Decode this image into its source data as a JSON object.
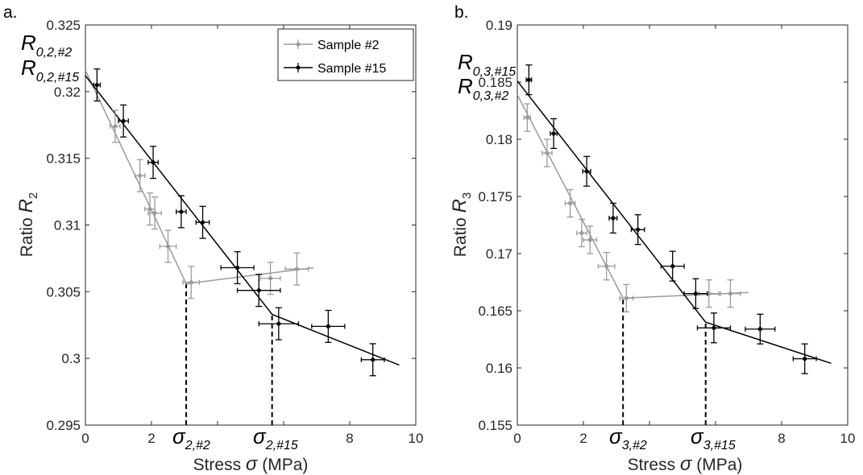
{
  "chart_data": [
    {
      "panel_label": "a.",
      "type": "scatter",
      "xlabel_prefix": "Stress",
      "xlabel_symbol": "σ",
      "xlabel_unit": "(MPa)",
      "ylabel_prefix": "Ratio",
      "ylabel_symbol": "R",
      "ylabel_sub": "2",
      "xlim": [
        0,
        10
      ],
      "ylim": [
        0.295,
        0.325
      ],
      "xticks": [
        0,
        2,
        4,
        6,
        8,
        10
      ],
      "xtick_labels": [
        "0",
        "2",
        "",
        "",
        "8",
        "10"
      ],
      "yticks": [
        0.295,
        0.3,
        0.305,
        0.31,
        0.315,
        0.32,
        0.325
      ],
      "ytick_labels": [
        "0.295",
        "0.3",
        "0.305",
        "0.31",
        "0.315",
        "0.32",
        "0.325"
      ],
      "legend": {
        "position": "top-right",
        "entries": [
          {
            "name": "Sample #2",
            "color": "#9a9a9a"
          },
          {
            "name": "Sample #15",
            "color": "#000000"
          }
        ]
      },
      "series": [
        {
          "name": "Sample #2",
          "color": "#9a9a9a",
          "points": [
            {
              "x": 0.9,
              "y": 0.3174,
              "xerr": 0.15,
              "yerr": 0.0012
            },
            {
              "x": 1.65,
              "y": 0.3137,
              "xerr": 0.15,
              "yerr": 0.0012
            },
            {
              "x": 1.95,
              "y": 0.3112,
              "xerr": 0.15,
              "yerr": 0.0012
            },
            {
              "x": 2.1,
              "y": 0.3109,
              "xerr": 0.2,
              "yerr": 0.0012
            },
            {
              "x": 2.5,
              "y": 0.3084,
              "xerr": 0.25,
              "yerr": 0.0012
            },
            {
              "x": 3.2,
              "y": 0.3057,
              "xerr": 0.25,
              "yerr": 0.0012
            },
            {
              "x": 5.6,
              "y": 0.306,
              "xerr": 0.3,
              "yerr": 0.0012
            },
            {
              "x": 6.4,
              "y": 0.3067,
              "xerr": 0.35,
              "yerr": 0.0012
            }
          ],
          "fit": [
            {
              "x": 0,
              "y": 0.3216
            },
            {
              "x": 3.05,
              "y": 0.3056
            },
            {
              "x": 6.9,
              "y": 0.3068
            }
          ]
        },
        {
          "name": "Sample #15",
          "color": "#000000",
          "points": [
            {
              "x": 0.35,
              "y": 0.3205,
              "xerr": 0.1,
              "yerr": 0.0012
            },
            {
              "x": 1.15,
              "y": 0.3178,
              "xerr": 0.15,
              "yerr": 0.0012
            },
            {
              "x": 2.05,
              "y": 0.3147,
              "xerr": 0.15,
              "yerr": 0.0012
            },
            {
              "x": 2.9,
              "y": 0.311,
              "xerr": 0.15,
              "yerr": 0.0012
            },
            {
              "x": 3.55,
              "y": 0.3102,
              "xerr": 0.2,
              "yerr": 0.0012
            },
            {
              "x": 4.6,
              "y": 0.3068,
              "xerr": 0.5,
              "yerr": 0.0012
            },
            {
              "x": 5.25,
              "y": 0.3051,
              "xerr": 0.65,
              "yerr": 0.0012
            },
            {
              "x": 5.85,
              "y": 0.3026,
              "xerr": 0.6,
              "yerr": 0.0012
            },
            {
              "x": 7.35,
              "y": 0.3024,
              "xerr": 0.5,
              "yerr": 0.0012
            },
            {
              "x": 8.7,
              "y": 0.2999,
              "xerr": 0.35,
              "yerr": 0.0012
            }
          ],
          "fit": [
            {
              "x": 0,
              "y": 0.3212
            },
            {
              "x": 5.65,
              "y": 0.3033
            },
            {
              "x": 9.5,
              "y": 0.2995
            }
          ]
        }
      ],
      "dashed_lines": [
        {
          "x": 3.05,
          "y0": 0.295,
          "y1": 0.3056
        },
        {
          "x": 5.65,
          "y0": 0.295,
          "y1": 0.3033
        }
      ],
      "annotations": {
        "r_top": {
          "base": "R",
          "sub": "0,2,#2"
        },
        "r_bottom": {
          "base": "R",
          "sub": "0,2,#15"
        },
        "sig_left": {
          "base": "σ",
          "sub": "2,#2"
        },
        "sig_right": {
          "base": "σ",
          "sub": "2,#15"
        }
      }
    },
    {
      "panel_label": "b.",
      "type": "scatter",
      "xlabel_prefix": "Stress",
      "xlabel_symbol": "σ",
      "xlabel_unit": "(MPa)",
      "ylabel_prefix": "Ratio",
      "ylabel_symbol": "R",
      "ylabel_sub": "3",
      "xlim": [
        0,
        10
      ],
      "ylim": [
        0.155,
        0.19
      ],
      "xticks": [
        0,
        2,
        4,
        6,
        8,
        10
      ],
      "xtick_labels": [
        "0",
        "2",
        "",
        "",
        "8",
        "10"
      ],
      "yticks": [
        0.155,
        0.16,
        0.165,
        0.17,
        0.175,
        0.18,
        0.185,
        0.19
      ],
      "ytick_labels": [
        "0.155",
        "0.16",
        "0.165",
        "0.17",
        "0.175",
        "0.18",
        "0.185",
        "0.19"
      ],
      "series": [
        {
          "name": "Sample #2",
          "color": "#9a9a9a",
          "points": [
            {
              "x": 0.3,
              "y": 0.1819,
              "xerr": 0.1,
              "yerr": 0.0012
            },
            {
              "x": 0.9,
              "y": 0.1788,
              "xerr": 0.15,
              "yerr": 0.0012
            },
            {
              "x": 1.6,
              "y": 0.1744,
              "xerr": 0.15,
              "yerr": 0.0012
            },
            {
              "x": 1.95,
              "y": 0.1718,
              "xerr": 0.15,
              "yerr": 0.0012
            },
            {
              "x": 2.2,
              "y": 0.1712,
              "xerr": 0.2,
              "yerr": 0.0012
            },
            {
              "x": 2.7,
              "y": 0.1689,
              "xerr": 0.25,
              "yerr": 0.0012
            },
            {
              "x": 3.3,
              "y": 0.1661,
              "xerr": 0.2,
              "yerr": 0.0012
            },
            {
              "x": 5.8,
              "y": 0.1665,
              "xerr": 0.3,
              "yerr": 0.0012
            },
            {
              "x": 6.45,
              "y": 0.1665,
              "xerr": 0.3,
              "yerr": 0.0012
            }
          ],
          "fit": [
            {
              "x": 0,
              "y": 0.1839
            },
            {
              "x": 3.2,
              "y": 0.1661
            },
            {
              "x": 7,
              "y": 0.1666
            }
          ]
        },
        {
          "name": "Sample #15",
          "color": "#000000",
          "points": [
            {
              "x": 0.35,
              "y": 0.1852,
              "xerr": 0.08,
              "yerr": 0.0013
            },
            {
              "x": 1.1,
              "y": 0.1805,
              "xerr": 0.1,
              "yerr": 0.0013
            },
            {
              "x": 2.1,
              "y": 0.1772,
              "xerr": 0.12,
              "yerr": 0.0013
            },
            {
              "x": 2.9,
              "y": 0.1731,
              "xerr": 0.12,
              "yerr": 0.0013
            },
            {
              "x": 3.65,
              "y": 0.1721,
              "xerr": 0.2,
              "yerr": 0.0013
            },
            {
              "x": 4.7,
              "y": 0.1689,
              "xerr": 0.35,
              "yerr": 0.0013
            },
            {
              "x": 5.4,
              "y": 0.1665,
              "xerr": 0.35,
              "yerr": 0.0013
            },
            {
              "x": 5.95,
              "y": 0.1635,
              "xerr": 0.5,
              "yerr": 0.0013
            },
            {
              "x": 7.35,
              "y": 0.1634,
              "xerr": 0.45,
              "yerr": 0.0013
            },
            {
              "x": 8.7,
              "y": 0.1608,
              "xerr": 0.35,
              "yerr": 0.0013
            }
          ],
          "fit": [
            {
              "x": 0,
              "y": 0.1851
            },
            {
              "x": 5.7,
              "y": 0.164
            },
            {
              "x": 9.5,
              "y": 0.1604
            }
          ]
        }
      ],
      "dashed_lines": [
        {
          "x": 3.2,
          "y0": 0.155,
          "y1": 0.1661
        },
        {
          "x": 5.7,
          "y0": 0.155,
          "y1": 0.164
        }
      ],
      "annotations": {
        "r_top": {
          "base": "R",
          "sub": "0,3,#15"
        },
        "r_bottom": {
          "base": "R",
          "sub": "0,3,#2"
        },
        "sig_left": {
          "base": "σ",
          "sub": "3,#2"
        },
        "sig_right": {
          "base": "σ",
          "sub": "3,#15"
        }
      }
    }
  ]
}
